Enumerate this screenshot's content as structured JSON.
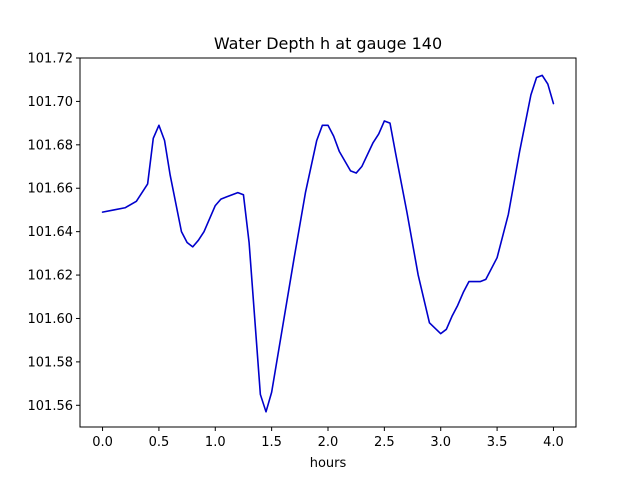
{
  "chart_data": {
    "type": "line",
    "title": "Water Depth h at gauge 140",
    "xlabel": "hours",
    "ylabel": "",
    "xlim": [
      -0.2,
      4.2
    ],
    "ylim": [
      101.55,
      101.72
    ],
    "xticks": [
      0.0,
      0.5,
      1.0,
      1.5,
      2.0,
      2.5,
      3.0,
      3.5,
      4.0
    ],
    "xtick_labels": [
      "0.0",
      "0.5",
      "1.0",
      "1.5",
      "2.0",
      "2.5",
      "3.0",
      "3.5",
      "4.0"
    ],
    "yticks": [
      101.56,
      101.58,
      101.6,
      101.62,
      101.64,
      101.66,
      101.68,
      101.7,
      101.72
    ],
    "ytick_labels": [
      "101.56",
      "101.58",
      "101.60",
      "101.62",
      "101.64",
      "101.66",
      "101.68",
      "101.70",
      "101.72"
    ],
    "grid": false,
    "series": [
      {
        "color": "#0000cc",
        "x": [
          0.0,
          0.1,
          0.2,
          0.3,
          0.4,
          0.45,
          0.5,
          0.55,
          0.6,
          0.7,
          0.75,
          0.8,
          0.85,
          0.9,
          1.0,
          1.05,
          1.1,
          1.2,
          1.25,
          1.3,
          1.35,
          1.4,
          1.45,
          1.5,
          1.6,
          1.7,
          1.8,
          1.9,
          1.95,
          2.0,
          2.05,
          2.1,
          2.2,
          2.25,
          2.3,
          2.4,
          2.45,
          2.5,
          2.55,
          2.6,
          2.7,
          2.8,
          2.9,
          3.0,
          3.05,
          3.1,
          3.15,
          3.2,
          3.25,
          3.3,
          3.35,
          3.4,
          3.5,
          3.6,
          3.7,
          3.8,
          3.85,
          3.9,
          3.95,
          4.0
        ],
        "y": [
          101.649,
          101.65,
          101.651,
          101.654,
          101.662,
          101.683,
          101.689,
          101.682,
          101.666,
          101.64,
          101.635,
          101.633,
          101.636,
          101.64,
          101.652,
          101.655,
          101.656,
          101.658,
          101.657,
          101.635,
          101.6,
          101.565,
          101.557,
          101.566,
          101.597,
          101.628,
          101.658,
          101.682,
          101.689,
          101.689,
          101.684,
          101.677,
          101.668,
          101.667,
          101.67,
          101.681,
          101.685,
          101.691,
          101.69,
          101.676,
          101.649,
          101.62,
          101.598,
          101.593,
          101.595,
          101.601,
          101.606,
          101.612,
          101.617,
          101.617,
          101.617,
          101.618,
          101.628,
          101.648,
          101.677,
          101.703,
          101.711,
          101.712,
          101.708,
          101.699
        ]
      }
    ]
  }
}
